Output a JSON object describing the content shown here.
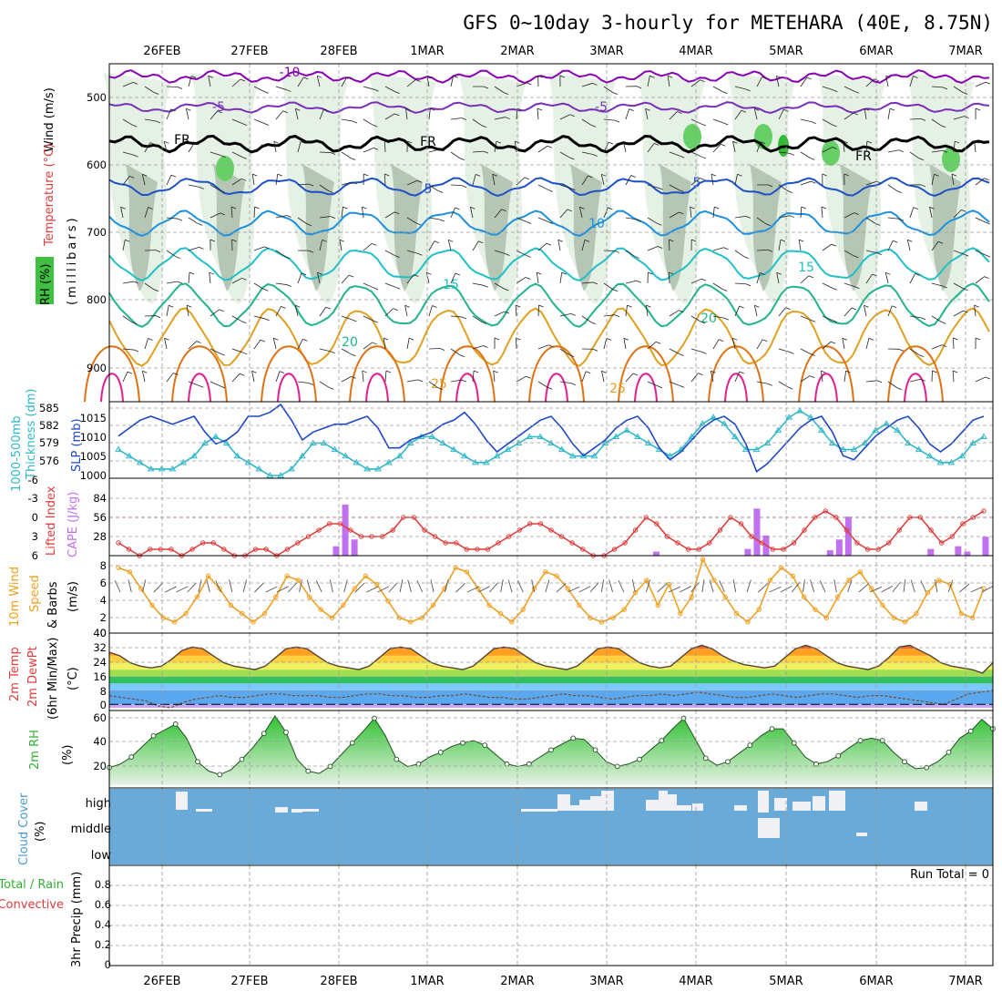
{
  "title": "GFS 0~10day 3-hourly for METEHARA (40E, 8.75N)",
  "dates": [
    "26FEB",
    "27FEB",
    "28FEB",
    "1MAR",
    "2MAR",
    "3MAR",
    "4MAR",
    "5MAR",
    "6MAR",
    "7MAR"
  ],
  "colors": {
    "grid": "#9a9a9a",
    "temp_contours": [
      "#8a00b4",
      "#7a2fb8",
      "#000000",
      "#1e50c8",
      "#1e90e0",
      "#20c0c8",
      "#20b48c",
      "#e0a020",
      "#e07010",
      "#e02090"
    ],
    "slp": "#1e46c8",
    "thickness": "#30b8c8",
    "lifted_index": "#e03c3c",
    "cape": "#c070f0",
    "wind10m": "#f0a020",
    "rh2m": "#30b030",
    "cloud_cover": "#6aaad8",
    "cloud_gap": "#f0f0f5",
    "precip_rain": "#30b030",
    "precip_conv": "#e03c3c"
  },
  "panels": {
    "upper_air": {
      "label_wind": "Wind (m/s)",
      "label_temp": "Temperature (°C)",
      "label_rh": "RH (%)",
      "label_mb": "(millibars)",
      "yticks": [
        "500",
        "600",
        "700",
        "800",
        "900"
      ],
      "contour_labels": [
        "-10",
        "-5",
        "-5",
        "FR",
        "FR",
        "FR",
        "5",
        "5",
        "10",
        "15",
        "15",
        "20",
        "20",
        "25",
        "25"
      ]
    },
    "thickness_slp": {
      "label_thick": "1000-500mb",
      "label_thick2": "Thickness (dm)",
      "label_slp": "SLP (mb)",
      "yticks_left": [
        "585",
        "582",
        "579",
        "576"
      ],
      "yticks_right": [
        "1015",
        "1010",
        "1005",
        "1000"
      ]
    },
    "li_cape": {
      "label_li": "Lifted Index",
      "label_cape": "CAPE (J/kg)",
      "yticks_left": [
        "-6",
        "-3",
        "0",
        "3",
        "6"
      ],
      "yticks_right": [
        "84",
        "56",
        "28"
      ]
    },
    "wind10m": {
      "label1": "10m Wind",
      "label2": "Speed",
      "label3": "& Barbs",
      "label4": "(m/s)",
      "yticks": [
        "8",
        "6",
        "4",
        "2",
        "0"
      ]
    },
    "temp2m": {
      "label1": "2m Temp",
      "label2": "2m DewPt",
      "label3": "(6hr Min/Max)",
      "label4": "(°C)",
      "yticks": [
        "40",
        "32",
        "24",
        "16",
        "8",
        "0"
      ]
    },
    "rh2m": {
      "label1": "2m RH",
      "label2": "(%)",
      "yticks": [
        "60",
        "40",
        "20"
      ]
    },
    "cloud": {
      "label1": "Cloud Cover",
      "label2": "(%)",
      "levels": [
        "high",
        "middle",
        "low"
      ]
    },
    "precip": {
      "label1": "Total / Rain",
      "label2": "Convective",
      "label3": "3hr Precip (mm)",
      "yticks": [
        "0.8",
        "0.6",
        "0.4",
        "0.2",
        "0"
      ],
      "run_total": "Run Total = 0"
    }
  },
  "chart_data": [
    {
      "type": "line",
      "title": "1000-500mb Thickness (dm) / SLP (mb)",
      "x_steps": 39,
      "series": [
        {
          "name": "SLP (mb)",
          "values": [
            1010,
            1012,
            1014,
            1015,
            1014,
            1013,
            1014,
            1015,
            1011,
            1008,
            1009,
            1011,
            1015,
            1015,
            1016,
            1018,
            1014,
            1009,
            1011,
            1012,
            1013,
            1013,
            1014,
            1015,
            1012,
            1007,
            1007,
            1009,
            1010,
            1011,
            1013,
            1014,
            1016,
            1013,
            1009,
            1006,
            1008,
            1010,
            1012,
            1014,
            1015,
            1012,
            1008,
            1005,
            1007,
            1009,
            1012,
            1014,
            1015,
            1012,
            1007,
            1004,
            1006,
            1009,
            1012,
            1014,
            1015,
            1013,
            1008,
            1001,
            1003,
            1006,
            1009,
            1012,
            1014,
            1015,
            1011,
            1005,
            1004,
            1007,
            1010,
            1012,
            1014,
            1015,
            1012,
            1008,
            1006,
            1008,
            1011,
            1014,
            1015
          ]
        },
        {
          "name": "Thickness (dm)",
          "values": [
            579,
            578,
            577,
            576,
            576,
            576,
            577,
            578,
            580,
            581,
            580,
            578,
            577,
            576,
            575,
            575,
            576,
            578,
            580,
            580,
            579,
            578,
            577,
            576,
            576,
            577,
            578,
            580,
            581,
            581,
            580,
            579,
            578,
            577,
            577,
            578,
            579,
            580,
            581,
            581,
            580,
            579,
            578,
            578,
            578,
            580,
            581,
            582,
            581,
            580,
            579,
            578,
            579,
            581,
            583,
            584,
            583,
            581,
            579,
            579,
            580,
            582,
            584,
            585,
            584,
            582,
            580,
            579,
            579,
            580,
            582,
            583,
            582,
            580,
            579,
            578,
            577,
            577,
            578,
            580,
            581
          ]
        }
      ],
      "ylim_left": [
        575,
        586
      ],
      "ylim_right": [
        1000,
        1018
      ]
    },
    {
      "type": "bar",
      "title": "Lifted Index / CAPE",
      "series": [
        {
          "name": "Lifted Index",
          "values": [
            4,
            5,
            6,
            5,
            5,
            5,
            6,
            5,
            4,
            4,
            5,
            6,
            6,
            5,
            5,
            6,
            5,
            4,
            3,
            2,
            1,
            1,
            2,
            3,
            3,
            3,
            2,
            0,
            0,
            2,
            3,
            4,
            4,
            5,
            5,
            5,
            4,
            3,
            2,
            1,
            1,
            2,
            3,
            4,
            5,
            6,
            6,
            5,
            4,
            2,
            0,
            1,
            3,
            4,
            5,
            5,
            4,
            2,
            0,
            1,
            3,
            4,
            5,
            5,
            4,
            2,
            0,
            -1,
            0,
            2,
            4,
            5,
            5,
            4,
            2,
            0,
            0,
            2,
            4,
            3,
            1,
            0,
            -1
          ]
        },
        {
          "name": "CAPE (J/kg)",
          "values": [
            0,
            0,
            0,
            0,
            0,
            0,
            0,
            0,
            0,
            0,
            0,
            0,
            0,
            0,
            0,
            0,
            0,
            0,
            0,
            0,
            0,
            0,
            0,
            0,
            14,
            76,
            24,
            0,
            0,
            0,
            0,
            0,
            0,
            0,
            0,
            0,
            0,
            0,
            0,
            0,
            0,
            0,
            0,
            0,
            0,
            0,
            0,
            0,
            0,
            0,
            0,
            0,
            0,
            0,
            0,
            0,
            0,
            0,
            0,
            6,
            0,
            0,
            0,
            0,
            0,
            0,
            0,
            0,
            0,
            10,
            70,
            30,
            0,
            0,
            0,
            0,
            0,
            0,
            8,
            24,
            58,
            0,
            0,
            0,
            0,
            0,
            0,
            0,
            0,
            10,
            0,
            0,
            14,
            6,
            0,
            28
          ]
        }
      ],
      "ylim_left": [
        6,
        -6
      ],
      "ylim_right": [
        0,
        84
      ]
    },
    {
      "type": "line",
      "title": "10m Wind Speed",
      "series": [
        {
          "name": "10m Wind Speed",
          "values": [
            7.5,
            7,
            5,
            3,
            1.5,
            1,
            2,
            4,
            6.5,
            5,
            3,
            2,
            1,
            2,
            4,
            6.5,
            6,
            4,
            2.5,
            1.5,
            3,
            5,
            6.5,
            5.5,
            3.5,
            1.5,
            1,
            1.5,
            3,
            5,
            7.5,
            7,
            5,
            3,
            2,
            1,
            2.5,
            5,
            7,
            6.5,
            5,
            3,
            1.5,
            1,
            1.5,
            2.5,
            4.5,
            6,
            3,
            5.5,
            2,
            4,
            8.5,
            6,
            4,
            2,
            1,
            2.5,
            6,
            7.5,
            6.5,
            4,
            2.5,
            1.5,
            4,
            6,
            7,
            5,
            3,
            1.5,
            1,
            2,
            4.5,
            6,
            5.5,
            2,
            1.5,
            5
          ]
        }
      ],
      "ylim": [
        0,
        8.5
      ]
    },
    {
      "type": "area",
      "title": "2m Temp / 2m DewPt",
      "series": [
        {
          "name": "2m Temp",
          "values": [
            30,
            28,
            24,
            22,
            21,
            22,
            26,
            31,
            33,
            32,
            28,
            24,
            22,
            21,
            20,
            22,
            27,
            32,
            33,
            32,
            28,
            24,
            22,
            21,
            20,
            22,
            27,
            32,
            33,
            32,
            28,
            24,
            22,
            21,
            20,
            22,
            27,
            32,
            33,
            32,
            28,
            24,
            22,
            21,
            20,
            22,
            27,
            32,
            33,
            32,
            28,
            24,
            22,
            21,
            22,
            27,
            32,
            34,
            32,
            28,
            25,
            23,
            22,
            21,
            22,
            27,
            32,
            34,
            32,
            28,
            24,
            22,
            21,
            20,
            22,
            27,
            33,
            34,
            31,
            28,
            24,
            22,
            21,
            20,
            18,
            24
          ]
        },
        {
          "name": "2m DewPt",
          "values": [
            5,
            4,
            3,
            2,
            -1,
            -2,
            1,
            3,
            4,
            5,
            4,
            4,
            5,
            6,
            6,
            5,
            5,
            5,
            4,
            4,
            5,
            6,
            6,
            5,
            5,
            4,
            4,
            5,
            5,
            6,
            5,
            4,
            4,
            3,
            3,
            4,
            5,
            6,
            5,
            5,
            4,
            3,
            4,
            5,
            5,
            6,
            5,
            6,
            7,
            6,
            5,
            4,
            4,
            5,
            6,
            5,
            4,
            5,
            6,
            6,
            5,
            4,
            5,
            5,
            4,
            3,
            2,
            1,
            0,
            3,
            6,
            7,
            8
          ]
        }
      ],
      "ylim": [
        -2,
        40
      ]
    },
    {
      "type": "area",
      "title": "2m RH",
      "series": [
        {
          "name": "2m RH",
          "values": [
            15,
            18,
            24,
            33,
            42,
            47,
            52,
            40,
            20,
            12,
            9,
            13,
            22,
            32,
            44,
            59,
            45,
            22,
            12,
            10,
            16,
            26,
            36,
            46,
            57,
            42,
            22,
            16,
            18,
            24,
            28,
            33,
            36,
            38,
            34,
            26,
            18,
            16,
            18,
            24,
            30,
            35,
            40,
            39,
            30,
            20,
            16,
            18,
            22,
            30,
            38,
            48,
            57,
            40,
            23,
            17,
            20,
            27,
            34,
            42,
            48,
            48,
            36,
            24,
            18,
            20,
            25,
            32,
            38,
            40,
            38,
            28,
            20,
            14,
            15,
            20,
            28,
            40,
            46,
            56,
            48
          ]
        }
      ],
      "ylim": [
        0,
        62
      ]
    }
  ]
}
